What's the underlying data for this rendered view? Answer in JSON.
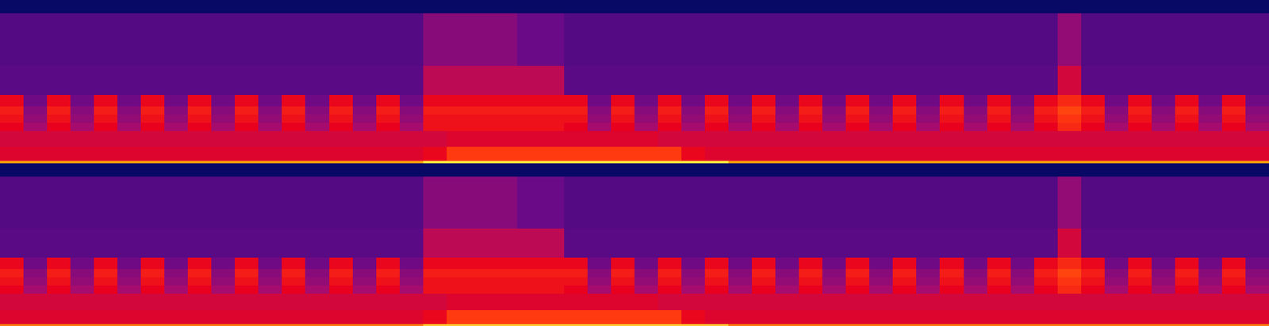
{
  "chart_data": {
    "type": "heatmap",
    "tick_labels": false,
    "xlim": [
      0,
      54
    ],
    "ylim": [
      0,
      1
    ],
    "ybins": [
      0,
      0.015,
      0.1,
      0.2,
      0.25,
      0.3,
      0.35,
      0.42,
      0.6,
      0.92,
      1.0
    ],
    "color_range": [
      0,
      100
    ],
    "channels": [
      {
        "cells": [
          [
            85,
            85,
            85,
            85,
            85,
            85,
            85,
            85,
            85,
            85,
            85,
            85,
            85,
            85,
            85,
            85,
            85,
            85,
            95,
            95,
            95,
            95,
            95,
            95,
            95,
            95,
            95,
            95,
            95,
            95,
            95,
            85,
            85,
            85,
            85,
            85,
            85,
            85,
            85,
            85,
            85,
            85,
            85,
            85,
            85,
            85,
            85,
            85,
            85,
            85,
            85,
            85,
            85,
            85
          ],
          [
            60,
            60,
            60,
            60,
            60,
            60,
            60,
            60,
            60,
            60,
            60,
            60,
            60,
            60,
            60,
            60,
            60,
            60,
            66,
            75,
            75,
            75,
            75,
            75,
            75,
            75,
            75,
            75,
            75,
            66,
            60,
            60,
            60,
            60,
            60,
            60,
            60,
            60,
            60,
            60,
            60,
            60,
            60,
            60,
            60,
            60,
            60,
            60,
            60,
            60,
            60,
            60,
            60,
            60
          ],
          [
            55,
            55,
            55,
            55,
            55,
            55,
            55,
            55,
            55,
            55,
            55,
            55,
            55,
            55,
            55,
            55,
            55,
            55,
            55,
            60,
            60,
            60,
            60,
            60,
            60,
            60,
            60,
            60,
            55,
            55,
            55,
            55,
            55,
            55,
            55,
            55,
            55,
            55,
            55,
            55,
            55,
            55,
            55,
            55,
            55,
            55,
            55,
            55,
            55,
            55,
            55,
            55,
            55,
            55
          ],
          [
            65,
            45,
            65,
            45,
            65,
            45,
            65,
            45,
            65,
            45,
            65,
            45,
            65,
            45,
            65,
            45,
            65,
            45,
            68,
            68,
            68,
            68,
            68,
            68,
            65,
            45,
            65,
            45,
            65,
            45,
            65,
            45,
            65,
            45,
            65,
            45,
            65,
            45,
            65,
            45,
            65,
            45,
            65,
            45,
            65,
            72,
            65,
            45,
            65,
            45,
            65,
            45,
            65,
            45
          ],
          [
            68,
            42,
            68,
            42,
            68,
            42,
            68,
            42,
            68,
            42,
            68,
            42,
            68,
            42,
            68,
            42,
            68,
            42,
            68,
            68,
            68,
            68,
            68,
            68,
            68,
            42,
            68,
            42,
            68,
            42,
            68,
            42,
            68,
            42,
            68,
            42,
            68,
            42,
            68,
            42,
            68,
            42,
            68,
            42,
            68,
            74,
            68,
            42,
            68,
            42,
            68,
            42,
            68,
            42
          ],
          [
            70,
            40,
            70,
            40,
            70,
            40,
            70,
            40,
            70,
            40,
            70,
            40,
            70,
            40,
            70,
            40,
            70,
            40,
            70,
            70,
            70,
            70,
            70,
            70,
            70,
            40,
            70,
            40,
            70,
            40,
            70,
            40,
            70,
            40,
            70,
            40,
            70,
            40,
            70,
            40,
            70,
            40,
            70,
            40,
            70,
            76,
            70,
            40,
            70,
            40,
            70,
            40,
            70,
            40
          ],
          [
            66,
            36,
            66,
            36,
            66,
            36,
            66,
            36,
            66,
            36,
            66,
            36,
            66,
            36,
            66,
            36,
            66,
            36,
            66,
            66,
            66,
            66,
            66,
            66,
            66,
            36,
            66,
            36,
            66,
            36,
            66,
            36,
            66,
            36,
            66,
            36,
            66,
            36,
            66,
            36,
            66,
            36,
            66,
            36,
            66,
            72,
            66,
            36,
            66,
            36,
            66,
            36,
            66,
            36
          ],
          [
            30,
            30,
            30,
            30,
            30,
            30,
            30,
            30,
            30,
            30,
            30,
            30,
            30,
            30,
            30,
            30,
            30,
            30,
            50,
            50,
            50,
            50,
            50,
            50,
            30,
            30,
            30,
            30,
            30,
            30,
            30,
            30,
            30,
            30,
            30,
            30,
            30,
            30,
            30,
            30,
            30,
            30,
            30,
            30,
            30,
            55,
            30,
            30,
            30,
            30,
            30,
            30,
            30,
            30
          ],
          [
            28,
            28,
            28,
            28,
            28,
            28,
            28,
            28,
            28,
            28,
            28,
            28,
            28,
            28,
            28,
            28,
            28,
            28,
            40,
            40,
            40,
            40,
            35,
            35,
            28,
            28,
            28,
            28,
            28,
            28,
            28,
            28,
            28,
            28,
            28,
            28,
            28,
            28,
            28,
            28,
            28,
            28,
            28,
            28,
            28,
            42,
            28,
            28,
            28,
            28,
            28,
            28,
            28,
            28
          ],
          [
            8,
            8,
            8,
            8,
            8,
            8,
            8,
            8,
            8,
            8,
            8,
            8,
            8,
            8,
            8,
            8,
            8,
            8,
            8,
            8,
            8,
            8,
            8,
            8,
            8,
            8,
            8,
            8,
            8,
            8,
            8,
            8,
            8,
            8,
            8,
            8,
            8,
            8,
            8,
            8,
            8,
            8,
            8,
            8,
            8,
            8,
            8,
            8,
            8,
            8,
            8,
            8,
            8,
            8
          ]
        ]
      },
      {
        "cells": [
          [
            82,
            82,
            82,
            82,
            82,
            82,
            82,
            82,
            82,
            82,
            82,
            82,
            82,
            82,
            82,
            82,
            82,
            82,
            92,
            92,
            92,
            92,
            92,
            92,
            92,
            92,
            92,
            92,
            92,
            92,
            92,
            82,
            82,
            82,
            82,
            82,
            82,
            82,
            82,
            82,
            82,
            82,
            82,
            82,
            82,
            82,
            82,
            82,
            82,
            82,
            82,
            82,
            82,
            82
          ],
          [
            60,
            60,
            60,
            60,
            60,
            60,
            60,
            60,
            60,
            60,
            60,
            60,
            60,
            60,
            60,
            60,
            60,
            60,
            66,
            75,
            75,
            75,
            75,
            75,
            75,
            75,
            75,
            75,
            75,
            66,
            60,
            60,
            60,
            60,
            60,
            60,
            60,
            60,
            60,
            60,
            60,
            60,
            60,
            60,
            60,
            60,
            60,
            60,
            60,
            60,
            60,
            60,
            60,
            60
          ],
          [
            55,
            55,
            55,
            55,
            55,
            55,
            55,
            55,
            55,
            55,
            55,
            55,
            55,
            55,
            55,
            55,
            55,
            55,
            55,
            60,
            60,
            60,
            60,
            60,
            60,
            60,
            60,
            60,
            55,
            55,
            55,
            55,
            55,
            55,
            55,
            55,
            55,
            55,
            55,
            55,
            55,
            55,
            55,
            55,
            55,
            55,
            55,
            55,
            55,
            55,
            55,
            55,
            55,
            55
          ],
          [
            65,
            45,
            65,
            45,
            65,
            45,
            65,
            45,
            65,
            45,
            65,
            45,
            65,
            45,
            65,
            45,
            65,
            45,
            68,
            68,
            68,
            68,
            68,
            68,
            65,
            45,
            65,
            45,
            65,
            45,
            65,
            45,
            65,
            45,
            65,
            45,
            65,
            45,
            65,
            45,
            65,
            45,
            65,
            45,
            65,
            72,
            65,
            45,
            65,
            45,
            65,
            45,
            65,
            45
          ],
          [
            68,
            42,
            68,
            42,
            68,
            42,
            68,
            42,
            68,
            42,
            68,
            42,
            68,
            42,
            68,
            42,
            68,
            42,
            68,
            68,
            68,
            68,
            68,
            68,
            68,
            42,
            68,
            42,
            68,
            42,
            68,
            42,
            68,
            42,
            68,
            42,
            68,
            42,
            68,
            42,
            68,
            42,
            68,
            42,
            68,
            74,
            68,
            42,
            68,
            42,
            68,
            42,
            68,
            42
          ],
          [
            70,
            40,
            70,
            40,
            70,
            40,
            70,
            40,
            70,
            40,
            70,
            40,
            70,
            40,
            70,
            40,
            70,
            40,
            70,
            70,
            70,
            70,
            70,
            70,
            70,
            40,
            70,
            40,
            70,
            40,
            70,
            40,
            70,
            40,
            70,
            40,
            70,
            40,
            70,
            40,
            70,
            40,
            70,
            40,
            70,
            76,
            70,
            40,
            70,
            40,
            70,
            40,
            70,
            40
          ],
          [
            66,
            36,
            66,
            36,
            66,
            36,
            66,
            36,
            66,
            36,
            66,
            36,
            66,
            36,
            66,
            36,
            66,
            36,
            66,
            66,
            66,
            66,
            66,
            66,
            66,
            36,
            66,
            36,
            66,
            36,
            66,
            36,
            66,
            36,
            66,
            36,
            66,
            36,
            66,
            36,
            66,
            36,
            66,
            36,
            66,
            72,
            66,
            36,
            66,
            36,
            66,
            36,
            66,
            36
          ],
          [
            30,
            30,
            30,
            30,
            30,
            30,
            30,
            30,
            30,
            30,
            30,
            30,
            30,
            30,
            30,
            30,
            30,
            30,
            50,
            50,
            50,
            50,
            50,
            50,
            30,
            30,
            30,
            30,
            30,
            30,
            30,
            30,
            30,
            30,
            30,
            30,
            30,
            30,
            30,
            30,
            30,
            30,
            30,
            30,
            30,
            55,
            30,
            30,
            30,
            30,
            30,
            30,
            30,
            30
          ],
          [
            28,
            28,
            28,
            28,
            28,
            28,
            28,
            28,
            28,
            28,
            28,
            28,
            28,
            28,
            28,
            28,
            28,
            28,
            40,
            40,
            40,
            40,
            35,
            35,
            28,
            28,
            28,
            28,
            28,
            28,
            28,
            28,
            28,
            28,
            28,
            28,
            28,
            28,
            28,
            28,
            28,
            28,
            28,
            28,
            28,
            42,
            28,
            28,
            28,
            28,
            28,
            28,
            28,
            28
          ],
          [
            8,
            8,
            8,
            8,
            8,
            8,
            8,
            8,
            8,
            8,
            8,
            8,
            8,
            8,
            8,
            8,
            8,
            8,
            8,
            8,
            8,
            8,
            8,
            8,
            8,
            8,
            8,
            8,
            8,
            8,
            8,
            8,
            8,
            8,
            8,
            8,
            8,
            8,
            8,
            8,
            8,
            8,
            8,
            8,
            8,
            8,
            8,
            8,
            8,
            8,
            8,
            8,
            8,
            8
          ]
        ]
      }
    ]
  }
}
